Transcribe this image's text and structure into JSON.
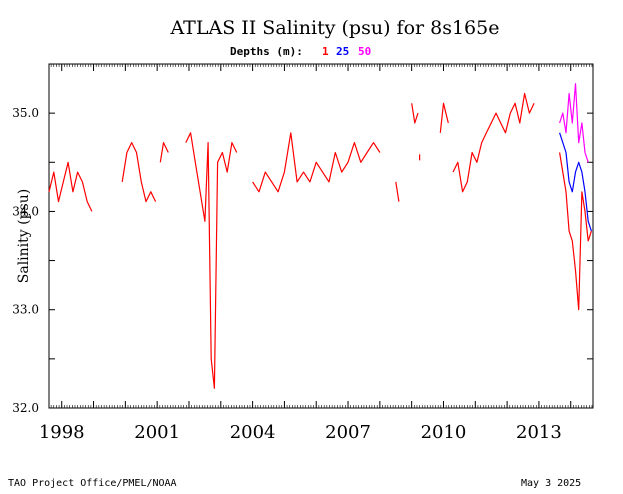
{
  "chart_data": {
    "type": "line",
    "title": "ATLAS II Salinity (psu) for 8s165e",
    "legend_label": "Depths (m):",
    "ylabel": "Salinity (psu)",
    "xlabel": "",
    "xlim": [
      1997.6,
      2014.7
    ],
    "ylim": [
      32.0,
      35.5
    ],
    "x_ticks": [
      1998,
      2001,
      2004,
      2007,
      2010,
      2013
    ],
    "y_ticks": [
      32.0,
      33.0,
      34.0,
      35.0
    ],
    "y_tick_labels": [
      "32.0",
      "33.0",
      "34.0",
      "35.0"
    ],
    "series": [
      {
        "name": "1",
        "color": "#ff0000",
        "segments": [
          {
            "x": [
              1997.6,
              1997.75,
              1997.9,
              1998.05,
              1998.2,
              1998.35,
              1998.5,
              1998.65,
              1998.8,
              1998.95
            ],
            "y": [
              34.2,
              34.4,
              34.1,
              34.3,
              34.5,
              34.2,
              34.4,
              34.3,
              34.1,
              34.0
            ]
          },
          {
            "x": [
              1999.9,
              2000.05,
              2000.2,
              2000.35,
              2000.5,
              2000.65,
              2000.8,
              2000.95
            ],
            "y": [
              34.3,
              34.6,
              34.7,
              34.6,
              34.3,
              34.1,
              34.2,
              34.1
            ]
          },
          {
            "x": [
              2001.1,
              2001.2,
              2001.35
            ],
            "y": [
              34.5,
              34.7,
              34.6
            ]
          },
          {
            "x": [
              2001.9,
              2002.05,
              2002.2,
              2002.35,
              2002.5,
              2002.6,
              2002.7,
              2002.8,
              2002.9,
              2003.05,
              2003.2,
              2003.35,
              2003.5
            ],
            "y": [
              34.7,
              34.8,
              34.5,
              34.2,
              33.9,
              34.7,
              32.5,
              32.2,
              34.5,
              34.6,
              34.4,
              34.7,
              34.6
            ]
          },
          {
            "x": [
              2004.0,
              2004.2,
              2004.4,
              2004.6,
              2004.8,
              2005.0,
              2005.2,
              2005.4,
              2005.6,
              2005.8,
              2006.0,
              2006.2,
              2006.4,
              2006.6,
              2006.8,
              2007.0,
              2007.2,
              2007.4,
              2007.6,
              2007.8,
              2008.0
            ],
            "y": [
              34.3,
              34.2,
              34.4,
              34.3,
              34.2,
              34.4,
              34.8,
              34.3,
              34.4,
              34.3,
              34.5,
              34.4,
              34.3,
              34.6,
              34.4,
              34.5,
              34.7,
              34.5,
              34.6,
              34.7,
              34.6
            ]
          },
          {
            "x": [
              2008.5,
              2008.6
            ],
            "y": [
              34.3,
              34.1
            ]
          },
          {
            "x": [
              2009.0,
              2009.1,
              2009.2
            ],
            "y": [
              35.1,
              34.9,
              35.0
            ]
          },
          {
            "x": [
              2009.25
            ],
            "y": [
              34.55
            ]
          },
          {
            "x": [
              2009.9,
              2010.0,
              2010.15
            ],
            "y": [
              34.8,
              35.1,
              34.9
            ]
          },
          {
            "x": [
              2010.3,
              2010.45,
              2010.6,
              2010.75,
              2010.9,
              2011.05,
              2011.2,
              2011.35,
              2011.5,
              2011.65,
              2011.8,
              2011.95,
              2012.1,
              2012.25,
              2012.4,
              2012.55,
              2012.7,
              2012.85
            ],
            "y": [
              34.4,
              34.5,
              34.2,
              34.3,
              34.6,
              34.5,
              34.7,
              34.8,
              34.9,
              35.0,
              34.9,
              34.8,
              35.0,
              35.1,
              34.9,
              35.2,
              35.0,
              35.1
            ]
          },
          {
            "x": [
              2013.65,
              2013.75,
              2013.85,
              2013.95,
              2014.05,
              2014.15,
              2014.25,
              2014.35,
              2014.45,
              2014.55,
              2014.65
            ],
            "y": [
              34.6,
              34.4,
              34.2,
              33.8,
              33.7,
              33.4,
              33.0,
              34.2,
              34.0,
              33.7,
              33.8
            ]
          }
        ]
      },
      {
        "name": "25",
        "color": "#0000ff",
        "segments": [
          {
            "x": [
              2013.65,
              2013.75,
              2013.85,
              2013.95,
              2014.05,
              2014.15,
              2014.25,
              2014.35,
              2014.45,
              2014.55,
              2014.65
            ],
            "y": [
              34.8,
              34.7,
              34.6,
              34.3,
              34.2,
              34.4,
              34.5,
              34.4,
              34.2,
              33.9,
              33.8
            ]
          }
        ]
      },
      {
        "name": "50",
        "color": "#ff00ff",
        "segments": [
          {
            "x": [
              2013.65,
              2013.75,
              2013.85,
              2013.95,
              2014.05,
              2014.15,
              2014.25,
              2014.35,
              2014.45,
              2014.55
            ],
            "y": [
              34.9,
              35.0,
              34.8,
              35.2,
              34.9,
              35.3,
              34.7,
              34.9,
              34.6,
              34.5
            ]
          }
        ]
      }
    ]
  },
  "footer": {
    "left": "TAO Project Office/PMEL/NOAA",
    "right": "May  3 2025"
  }
}
